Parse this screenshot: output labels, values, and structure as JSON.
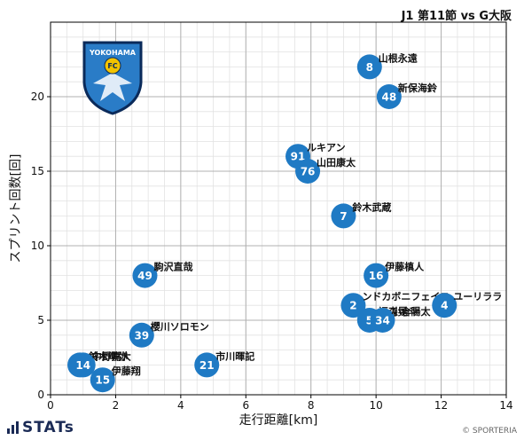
{
  "header": {
    "match_title": "J1 第11節 vs G大阪"
  },
  "footer": {
    "brand": "STATs",
    "copyright": "© SPORTERIA"
  },
  "logo": {
    "top_text": "YOKOHAMA",
    "badge_text": "FC",
    "colors": {
      "shield": "#2a7cc7",
      "outline": "#0a2a5a",
      "accent": "#e33"
    }
  },
  "colors": {
    "marker": "#1f7ac4",
    "marker_text": "#ffffff",
    "grid_major": "#b0b0b0",
    "grid_minor": "#e2e2e2"
  },
  "chart_data": {
    "type": "scatter",
    "xlabel": "走行距離[km]",
    "ylabel": "スプリント回数[回]",
    "xlim": [
      0,
      14
    ],
    "ylim": [
      0,
      25
    ],
    "xticks": [
      0,
      2,
      4,
      6,
      8,
      10,
      12,
      14
    ],
    "yticks": [
      0,
      5,
      10,
      15,
      20
    ],
    "grid": true,
    "points": [
      {
        "num": "8",
        "name": "山根永遠",
        "x": 9.8,
        "y": 22
      },
      {
        "num": "48",
        "name": "新保海鈴",
        "x": 10.4,
        "y": 20
      },
      {
        "num": "91",
        "name": "ルキアン",
        "x": 7.6,
        "y": 16
      },
      {
        "num": "76",
        "name": "山田康太",
        "x": 7.9,
        "y": 15
      },
      {
        "num": "7",
        "name": "鈴木武蔵",
        "x": 9.0,
        "y": 12
      },
      {
        "num": "49",
        "name": "駒沢直哉",
        "x": 2.9,
        "y": 8
      },
      {
        "num": "16",
        "name": "伊藤槙人",
        "x": 10.0,
        "y": 8
      },
      {
        "num": "2",
        "name": "ンドカボニフェイス",
        "x": 9.3,
        "y": 6
      },
      {
        "num": "4",
        "name": "ユーリララ",
        "x": 12.1,
        "y": 6
      },
      {
        "num": "5",
        "name": "福森晃斗",
        "x": 9.8,
        "y": 5
      },
      {
        "num": "34",
        "name": "小倉陽太",
        "x": 10.2,
        "y": 5
      },
      {
        "num": "39",
        "name": "櫻川ソロモン",
        "x": 2.8,
        "y": 4
      },
      {
        "num": "21",
        "name": "市川暉記",
        "x": 4.8,
        "y": 2
      },
      {
        "num": "31",
        "name": "鈴木準弥",
        "x": 0.9,
        "y": 2
      },
      {
        "num": "14",
        "name": "中野嘉大",
        "x": 1.0,
        "y": 2
      },
      {
        "num": "15",
        "name": "伊藤翔",
        "x": 1.6,
        "y": 1
      }
    ]
  }
}
